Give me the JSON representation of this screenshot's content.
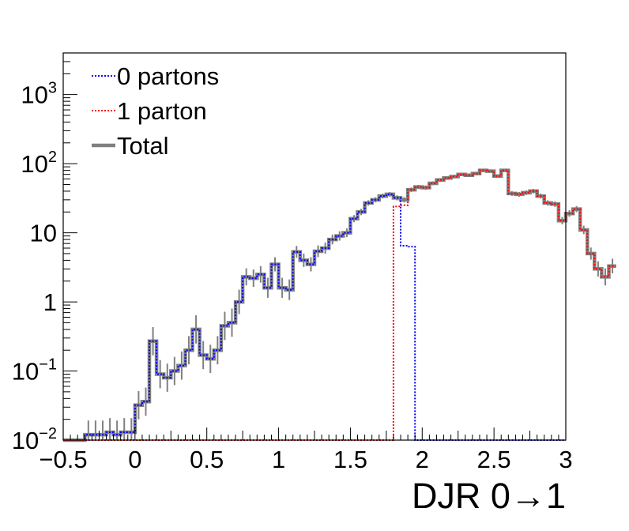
{
  "chart_data": {
    "type": "line",
    "xlabel": "DJR 0→1",
    "ylabel": "",
    "title": "",
    "xlim": [
      -0.5,
      3.0
    ],
    "ylim": [
      0.01,
      4000
    ],
    "y_scale": "log",
    "x_ticks": [
      "−0.5",
      "0",
      "0.5",
      "1",
      "1.5",
      "2",
      "2.5",
      "3"
    ],
    "y_ticks": [
      {
        "base": "10",
        "exp": "−2"
      },
      {
        "base": "10",
        "exp": "−1"
      },
      {
        "base": "1",
        "exp": ""
      },
      {
        "base": "10",
        "exp": ""
      },
      {
        "base": "10",
        "exp": "2"
      },
      {
        "base": "10",
        "exp": "3"
      }
    ],
    "grid": false,
    "legend": {
      "placement": "top-left",
      "entries": [
        {
          "label": "0 partons",
          "color": "#0000ff",
          "style": "dotted"
        },
        {
          "label": "1 parton",
          "color": "#ff0000",
          "style": "dotted"
        },
        {
          "label": "Total",
          "color": "#808080",
          "style": "solid-thick"
        }
      ]
    },
    "bin_width": 0.05,
    "series": [
      {
        "name": "0 partons",
        "color": "#0000ff",
        "x_start": -0.5,
        "values": [
          0.01,
          0.01,
          0.01,
          0.012,
          0.012,
          0.012,
          0.013,
          0.012,
          0.013,
          0.013,
          0.032,
          0.036,
          0.27,
          0.09,
          0.08,
          0.1,
          0.12,
          0.2,
          0.4,
          0.17,
          0.15,
          0.2,
          0.45,
          0.5,
          1.0,
          2.3,
          2.2,
          2.5,
          1.6,
          3.5,
          1.6,
          1.5,
          5.3,
          4.0,
          3.5,
          5.4,
          6.0,
          8.0,
          9.0,
          10.0,
          16.0,
          20.0,
          27.0,
          30.0,
          34.0,
          36.0,
          32.0,
          6.5,
          6.3,
          0.01,
          0.01,
          0.01,
          0.01,
          0.01,
          0.01,
          0.01,
          0.01,
          0.01,
          0.01,
          0.01,
          0.01,
          0.01,
          0.01,
          0.01,
          0.01,
          0.01,
          0.01,
          0.01,
          0.01,
          0.01
        ]
      },
      {
        "name": "1 parton",
        "color": "#ff0000",
        "x_start": -0.5,
        "values": [
          0.01,
          0.01,
          0.01,
          0.01,
          0.01,
          0.01,
          0.01,
          0.01,
          0.01,
          0.01,
          0.01,
          0.01,
          0.01,
          0.01,
          0.01,
          0.01,
          0.01,
          0.01,
          0.01,
          0.01,
          0.01,
          0.01,
          0.01,
          0.01,
          0.01,
          0.01,
          0.01,
          0.01,
          0.01,
          0.01,
          0.01,
          0.01,
          0.01,
          0.01,
          0.01,
          0.01,
          0.01,
          0.01,
          0.01,
          0.01,
          0.01,
          0.01,
          0.01,
          0.01,
          0.01,
          0.01,
          24.0,
          25.0,
          42.0,
          46.0,
          45.0,
          52.0,
          58.0,
          62.0,
          65.0,
          70.0,
          68.0,
          72.0,
          80.0,
          78.0,
          66.0,
          80.0,
          37.0,
          36.0,
          38.0,
          40.0,
          34.0,
          27.0,
          26.0,
          15.0,
          19.0,
          22.0,
          11.0,
          5.0,
          3.0,
          2.3,
          3.3
        ]
      },
      {
        "name": "Total",
        "color": "#808080",
        "x_start": -0.5,
        "values": [
          0.01,
          0.01,
          0.01,
          0.012,
          0.012,
          0.012,
          0.013,
          0.012,
          0.013,
          0.013,
          0.032,
          0.036,
          0.27,
          0.09,
          0.08,
          0.1,
          0.12,
          0.2,
          0.4,
          0.17,
          0.15,
          0.2,
          0.45,
          0.5,
          1.0,
          2.3,
          2.2,
          2.5,
          1.6,
          3.5,
          1.6,
          1.5,
          5.3,
          4.0,
          3.5,
          5.4,
          6.0,
          8.0,
          9.0,
          10.0,
          16.0,
          20.0,
          27.0,
          30.0,
          34.0,
          36.0,
          32.0,
          30.0,
          42.0,
          46.0,
          45.0,
          52.0,
          58.0,
          62.0,
          65.0,
          70.0,
          68.0,
          72.0,
          80.0,
          78.0,
          66.0,
          80.0,
          37.0,
          36.0,
          38.0,
          40.0,
          34.0,
          27.0,
          26.0,
          15.0,
          19.0,
          22.0,
          11.0,
          5.0,
          3.0,
          2.3,
          3.3
        ]
      }
    ]
  }
}
